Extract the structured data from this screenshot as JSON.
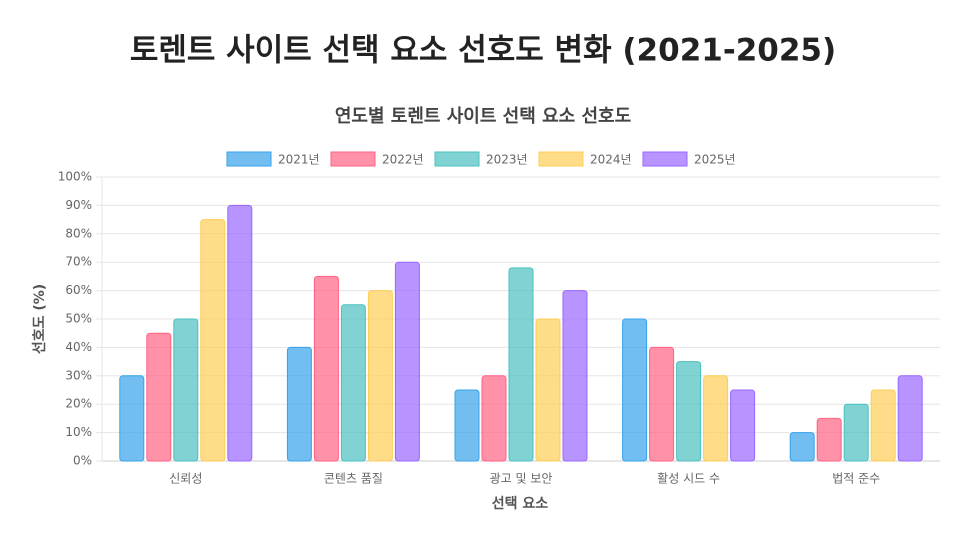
{
  "page_title": "토렌트 사이트 선택 요소 선호도 변화 (2021-2025)",
  "chart_data": {
    "type": "bar",
    "title": "연도별 토렌트 사이트 선택 요소 선호도",
    "x_label": "선택 요소",
    "y_label": "선호도 (%)",
    "categories": [
      "신뢰성",
      "콘텐츠 품질",
      "광고 및 보안",
      "활성 시드 수",
      "법적 준수"
    ],
    "series": [
      {
        "name": "2021년",
        "color": "#36a2eb",
        "values": [
          30,
          40,
          25,
          50,
          10
        ]
      },
      {
        "name": "2022년",
        "color": "#ff6384",
        "values": [
          45,
          65,
          30,
          40,
          15
        ]
      },
      {
        "name": "2023년",
        "color": "#4bc0c0",
        "values": [
          50,
          55,
          68,
          35,
          20
        ]
      },
      {
        "name": "2024년",
        "color": "#ffcd56",
        "values": [
          85,
          60,
          50,
          30,
          25
        ]
      },
      {
        "name": "2025년",
        "color": "#9966ff",
        "values": [
          90,
          70,
          60,
          25,
          30
        ]
      }
    ],
    "ylim": [
      0,
      100
    ],
    "yticks": [
      {
        "value": 0,
        "label": "0%"
      },
      {
        "value": 10,
        "label": "10%"
      },
      {
        "value": 20,
        "label": "20%"
      },
      {
        "value": 30,
        "label": "30%"
      },
      {
        "value": 40,
        "label": "40%"
      },
      {
        "value": 50,
        "label": "50%"
      },
      {
        "value": 60,
        "label": "60%"
      },
      {
        "value": 70,
        "label": "70%"
      },
      {
        "value": 80,
        "label": "80%"
      },
      {
        "value": 90,
        "label": "90%"
      },
      {
        "value": 100,
        "label": "100%"
      }
    ],
    "grid": true,
    "legend": "top"
  }
}
